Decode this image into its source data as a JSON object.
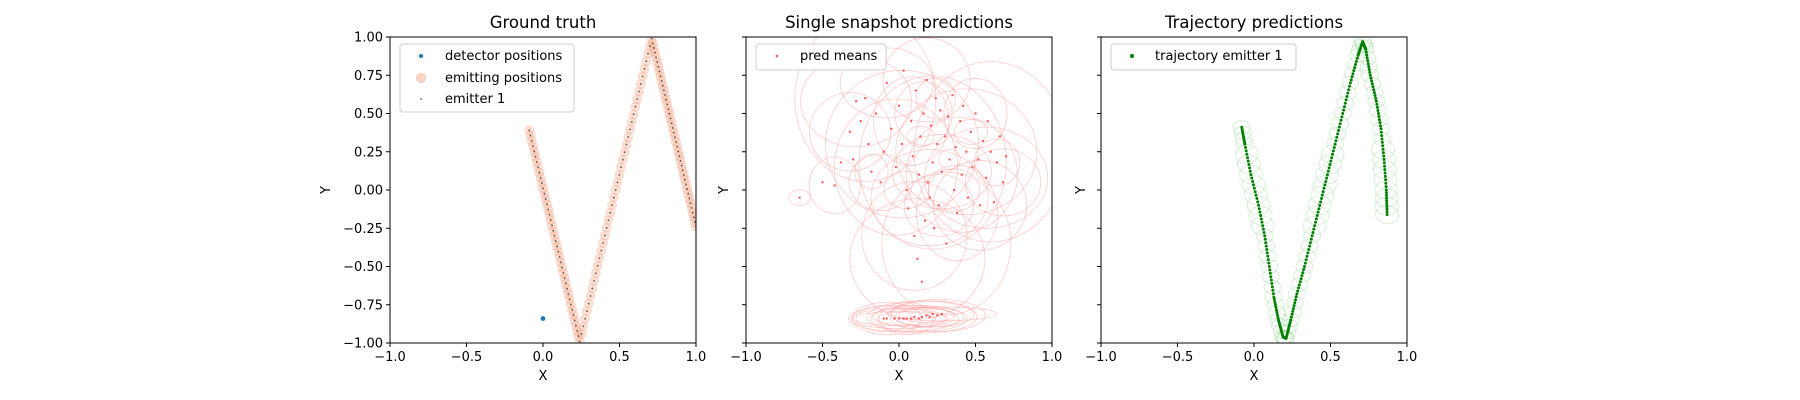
{
  "chart_data": [
    {
      "type": "scatter",
      "title": "Ground truth",
      "xlabel": "X",
      "ylabel": "Y",
      "xlim": [
        -1.0,
        1.0
      ],
      "ylim": [
        -1.0,
        1.0
      ],
      "xticks": [
        "−1.0",
        "−0.5",
        "0.0",
        "0.5",
        "1.0"
      ],
      "yticks": [
        "1.00",
        "0.75",
        "0.50",
        "0.25",
        "0.00",
        "−0.25",
        "−0.50",
        "−0.75",
        "−1.00"
      ],
      "show_y_tick_labels": true,
      "legend": {
        "placement": "top-left",
        "entries": [
          "detector positions",
          "emitting positions",
          "emitter 1"
        ]
      },
      "series": [
        {
          "name": "detector positions",
          "color": "#1f77b4",
          "points": [
            [
              0.0,
              -0.84
            ]
          ]
        },
        {
          "name": "emitting positions",
          "color": "#f4a582",
          "path": [
            [
              -0.09,
              0.39
            ],
            [
              0.24,
              -0.99
            ],
            [
              0.71,
              0.99
            ],
            [
              1.0,
              -0.24
            ]
          ]
        },
        {
          "name": "emitter 1",
          "color": "#888888",
          "path": [
            [
              -0.09,
              0.39
            ],
            [
              0.24,
              -0.99
            ],
            [
              0.71,
              0.99
            ],
            [
              1.0,
              -0.24
            ]
          ]
        }
      ]
    },
    {
      "type": "scatter",
      "title": "Single snapshot predictions",
      "xlabel": "X",
      "ylabel": "Y",
      "xlim": [
        -1.0,
        1.0
      ],
      "ylim": [
        -1.0,
        1.0
      ],
      "xticks": [
        "−1.0",
        "−0.5",
        "0.0",
        "0.5",
        "1.0"
      ],
      "yticks": [
        "",
        "",
        "",
        "",
        "",
        "",
        "",
        "",
        ""
      ],
      "show_y_tick_labels": false,
      "legend": {
        "placement": "top-left",
        "entries": [
          "pred means"
        ]
      },
      "series": [
        {
          "name": "pred means",
          "color": "#ff3333",
          "points": [
            [
              -0.65,
              -0.05
            ],
            [
              -0.5,
              0.05
            ],
            [
              -0.42,
              0.03
            ],
            [
              -0.38,
              0.18
            ],
            [
              -0.32,
              0.38
            ],
            [
              -0.3,
              0.2
            ],
            [
              -0.28,
              0.58
            ],
            [
              -0.25,
              0.45
            ],
            [
              -0.22,
              0.6
            ],
            [
              -0.2,
              0.3
            ],
            [
              -0.18,
              0.12
            ],
            [
              -0.15,
              0.5
            ],
            [
              -0.12,
              0.05
            ],
            [
              -0.1,
              0.25
            ],
            [
              -0.08,
              0.7
            ],
            [
              -0.05,
              0.4
            ],
            [
              -0.02,
              0.15
            ],
            [
              0.0,
              0.55
            ],
            [
              0.02,
              0.3
            ],
            [
              0.03,
              0.78
            ],
            [
              0.05,
              0.0
            ],
            [
              0.06,
              -0.12
            ],
            [
              0.08,
              0.45
            ],
            [
              0.09,
              0.22
            ],
            [
              0.1,
              -0.3
            ],
            [
              0.11,
              0.65
            ],
            [
              0.12,
              -0.45
            ],
            [
              0.13,
              0.1
            ],
            [
              0.14,
              0.35
            ],
            [
              0.15,
              -0.6
            ],
            [
              0.16,
              0.5
            ],
            [
              0.17,
              -0.2
            ],
            [
              0.18,
              0.72
            ],
            [
              0.19,
              0.05
            ],
            [
              0.2,
              -0.05
            ],
            [
              0.21,
              0.42
            ],
            [
              0.22,
              0.18
            ],
            [
              0.23,
              -0.25
            ],
            [
              0.24,
              0.6
            ],
            [
              0.25,
              0.3
            ],
            [
              0.26,
              -0.1
            ],
            [
              0.27,
              0.52
            ],
            [
              0.28,
              0.12
            ],
            [
              0.3,
              0.35
            ],
            [
              0.31,
              -0.35
            ],
            [
              0.32,
              0.48
            ],
            [
              0.33,
              0.2
            ],
            [
              0.35,
              0.62
            ],
            [
              0.36,
              0.0
            ],
            [
              0.37,
              0.28
            ],
            [
              0.38,
              -0.15
            ],
            [
              0.4,
              0.45
            ],
            [
              0.41,
              0.1
            ],
            [
              0.42,
              0.55
            ],
            [
              0.44,
              0.25
            ],
            [
              0.45,
              -0.05
            ],
            [
              0.47,
              0.38
            ],
            [
              0.48,
              0.15
            ],
            [
              0.5,
              0.5
            ],
            [
              0.52,
              0.2
            ],
            [
              0.53,
              -0.1
            ],
            [
              0.55,
              0.32
            ],
            [
              0.57,
              0.08
            ],
            [
              0.58,
              0.45
            ],
            [
              0.6,
              0.25
            ],
            [
              0.62,
              -0.08
            ],
            [
              0.64,
              0.18
            ],
            [
              0.66,
              0.35
            ],
            [
              0.68,
              0.05
            ],
            [
              0.7,
              0.22
            ],
            [
              -0.1,
              -0.84
            ],
            [
              -0.08,
              -0.84
            ],
            [
              -0.03,
              -0.84
            ],
            [
              0.0,
              -0.84
            ],
            [
              0.03,
              -0.84
            ],
            [
              0.05,
              -0.84
            ],
            [
              0.08,
              -0.84
            ],
            [
              0.1,
              -0.83
            ],
            [
              0.13,
              -0.84
            ],
            [
              0.15,
              -0.83
            ],
            [
              0.18,
              -0.82
            ],
            [
              0.2,
              -0.83
            ],
            [
              0.22,
              -0.81
            ],
            [
              0.25,
              -0.82
            ],
            [
              0.28,
              -0.81
            ]
          ]
        }
      ]
    },
    {
      "type": "scatter",
      "title": "Trajectory predictions",
      "xlabel": "X",
      "ylabel": "Y",
      "xlim": [
        -1.0,
        1.0
      ],
      "ylim": [
        -1.0,
        1.0
      ],
      "xticks": [
        "−1.0",
        "−0.5",
        "0.0",
        "0.5",
        "1.0"
      ],
      "yticks": [
        "",
        "",
        "",
        "",
        "",
        "",
        "",
        "",
        ""
      ],
      "show_y_tick_labels": false,
      "legend": {
        "placement": "top-left",
        "entries": [
          "trajectory emitter 1"
        ]
      },
      "series": [
        {
          "name": "trajectory emitter 1",
          "color": "#008000",
          "path": [
            [
              -0.08,
              0.41
            ],
            [
              -0.06,
              0.3
            ],
            [
              -0.02,
              0.1
            ],
            [
              0.03,
              -0.1
            ],
            [
              0.07,
              -0.3
            ],
            [
              0.1,
              -0.5
            ],
            [
              0.13,
              -0.7
            ],
            [
              0.16,
              -0.85
            ],
            [
              0.19,
              -0.96
            ],
            [
              0.21,
              -0.97
            ],
            [
              0.24,
              -0.85
            ],
            [
              0.28,
              -0.68
            ],
            [
              0.33,
              -0.5
            ],
            [
              0.38,
              -0.3
            ],
            [
              0.43,
              -0.1
            ],
            [
              0.48,
              0.1
            ],
            [
              0.53,
              0.3
            ],
            [
              0.58,
              0.5
            ],
            [
              0.63,
              0.7
            ],
            [
              0.68,
              0.88
            ],
            [
              0.71,
              0.97
            ],
            [
              0.73,
              0.92
            ],
            [
              0.76,
              0.75
            ],
            [
              0.8,
              0.58
            ],
            [
              0.83,
              0.4
            ],
            [
              0.85,
              0.2
            ],
            [
              0.865,
              0.0
            ],
            [
              0.87,
              -0.16
            ]
          ]
        }
      ]
    }
  ]
}
